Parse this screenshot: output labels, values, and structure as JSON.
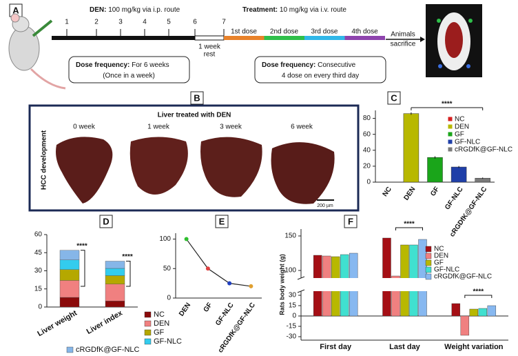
{
  "panel_labels": [
    "A",
    "B",
    "C",
    "D",
    "E",
    "F"
  ],
  "timeline": {
    "den_title": "DEN:",
    "den_detail": "100 mg/kg via i.p. route",
    "treatment_title": "Treatment:",
    "treatment_detail": "10 mg/kg via i.v. route",
    "weeks": [
      "1",
      "2",
      "3",
      "4",
      "5",
      "6",
      "7"
    ],
    "rest": [
      "1 week",
      "rest"
    ],
    "doses": [
      {
        "label": "1st dose",
        "color": "#e8822a"
      },
      {
        "label": "2nd dose",
        "color": "#2fbf4a"
      },
      {
        "label": "3rd dose",
        "color": "#31b7e8"
      },
      {
        "label": "4th dose",
        "color": "#8e44ad"
      }
    ],
    "sacrifice": [
      "Animals",
      "sacrifice"
    ],
    "box1": {
      "title": "Dose frequency:",
      "lines": [
        "For 6 weeks",
        "(Once in a week)"
      ]
    },
    "box2": {
      "title": "Dose frequency:",
      "lines": [
        "Consecutive",
        "4 dose on every third day"
      ]
    }
  },
  "liver_panel": {
    "title": "Liver treated with DEN",
    "side_label": "HCC development",
    "weeks": [
      "0 week",
      "1 week",
      "3 week",
      "6 week"
    ],
    "scale": "200 µm"
  },
  "chart_data": [
    {
      "type": "bar",
      "categories": [
        "NC",
        "DEN",
        "GF",
        "GF-NLC",
        "cRGDfK@GF-NLC"
      ],
      "values": [
        0,
        86,
        31,
        19,
        5
      ],
      "errors": [
        0,
        1.5,
        1.5,
        1.2,
        0.8
      ],
      "colors": [
        "#d62020",
        "#b8b800",
        "#1aa51a",
        "#1f3fa8",
        "#7a7a7a"
      ],
      "ylim": [
        0,
        90
      ],
      "yticks": [
        0,
        20,
        40,
        60,
        80
      ],
      "legend": "top-right",
      "significance": "****"
    },
    {
      "type": "stacked_bar",
      "categories": [
        "Liver weight",
        "Liver index"
      ],
      "series": [
        {
          "name": "NC",
          "color": "#8b0a0a",
          "values": [
            8,
            5
          ]
        },
        {
          "name": "DEN",
          "color": "#f08080",
          "values": [
            14,
            14
          ]
        },
        {
          "name": "GF",
          "color": "#b5a800",
          "values": [
            9,
            7
          ]
        },
        {
          "name": "GF-NLC",
          "color": "#33ccee",
          "values": [
            8,
            6
          ]
        },
        {
          "name": "cRGDfK@GF-NLC",
          "color": "#86b6e8",
          "values": [
            8,
            6
          ]
        }
      ],
      "ylim": [
        0,
        60
      ],
      "yticks": [
        0,
        15,
        30,
        45,
        60
      ],
      "legend": "bottom-right",
      "significance": [
        "****",
        "****"
      ]
    },
    {
      "type": "line",
      "categories": [
        "DEN",
        "GF",
        "GF-NLC",
        "cRGDfK@GF-NLC"
      ],
      "values": [
        100,
        50,
        25,
        20
      ],
      "colors": [
        "#2fbf2f",
        "#e04040",
        "#2040c0",
        "#e0a030"
      ],
      "ylim": [
        0,
        110
      ],
      "yticks": [
        0,
        50,
        100
      ]
    },
    {
      "type": "broken_bar",
      "ylabel": "Rats body weight (g)",
      "categories": [
        "First day",
        "Last day",
        "Weight variation"
      ],
      "series": [
        {
          "name": "NC",
          "color": "#a50f15",
          "values": [
            122,
            147,
            18
          ]
        },
        {
          "name": "DEN",
          "color": "#f08080",
          "values": [
            121,
            92,
            -28
          ]
        },
        {
          "name": "GF",
          "color": "#b8b800",
          "values": [
            120,
            137,
            10
          ]
        },
        {
          "name": "GF-NLC",
          "color": "#40e0d0",
          "values": [
            123,
            137,
            11
          ]
        },
        {
          "name": "cRGDfK@GF-NLC",
          "color": "#87b8f0",
          "values": [
            125,
            145,
            15
          ]
        }
      ],
      "ylim": [
        -35,
        160
      ],
      "ybreak": [
        35,
        90
      ],
      "yticks": [
        -30,
        -15,
        0,
        15,
        30,
        100,
        150
      ],
      "legend": "right",
      "significance": [
        "****",
        "****"
      ]
    }
  ]
}
